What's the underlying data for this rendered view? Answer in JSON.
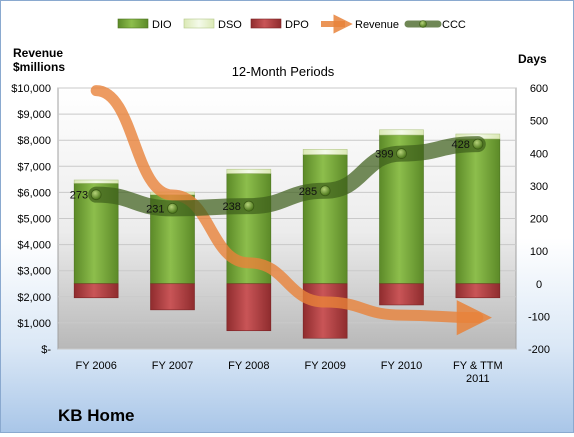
{
  "company": "KB Home",
  "chart_data": {
    "type": "combo",
    "title": "12-Month Periods",
    "left_axis_label": [
      "Revenue",
      "$millions"
    ],
    "right_axis_label": "Days",
    "categories": [
      "FY 2006",
      "FY 2007",
      "FY 2008",
      "FY 2009",
      "FY 2010",
      "FY & TTM 2011"
    ],
    "left_ylim": [
      0,
      10000
    ],
    "left_ticks": [
      "$-",
      "$1,000",
      "$2,000",
      "$3,000",
      "$4,000",
      "$5,000",
      "$6,000",
      "$7,000",
      "$8,000",
      "$9,000",
      "$10,000"
    ],
    "right_ylim": [
      -200,
      600
    ],
    "right_ticks": [
      "-200",
      "-100",
      "0",
      "100",
      "200",
      "300",
      "400",
      "500",
      "600"
    ],
    "legend": [
      "DIO",
      "DSO",
      "DPO",
      "Revenue",
      "CCC"
    ],
    "legend_position": "top",
    "series": [
      {
        "name": "DIO",
        "type": "stacked_bar",
        "axis": "right",
        "values": [
          308,
          273,
          338,
          396,
          456,
          444
        ]
      },
      {
        "name": "DSO",
        "type": "stacked_bar",
        "axis": "right",
        "values": [
          10,
          8,
          13,
          16,
          16,
          15
        ]
      },
      {
        "name": "DPO",
        "type": "negative_bar",
        "axis": "right",
        "values": [
          -43,
          -80,
          -144,
          -167,
          -65,
          -43
        ]
      },
      {
        "name": "Revenue",
        "type": "arrow_line",
        "axis": "left",
        "values": [
          9900,
          5900,
          3300,
          1800,
          1300,
          1200
        ]
      },
      {
        "name": "CCC",
        "type": "line",
        "axis": "right",
        "values": [
          273,
          231,
          238,
          285,
          399,
          428
        ],
        "labels": [
          "273",
          "231",
          "238",
          "285",
          "399",
          "428"
        ]
      }
    ],
    "colors": {
      "DIO": "#77a83a",
      "DSO": "#e8f2c8",
      "DPO": "#b84042",
      "Revenue": "#e8823a",
      "CCC": "#4a6a22",
      "plot_bg_top": "#ffffff",
      "plot_bg_bottom": "#bdbdbd"
    }
  }
}
